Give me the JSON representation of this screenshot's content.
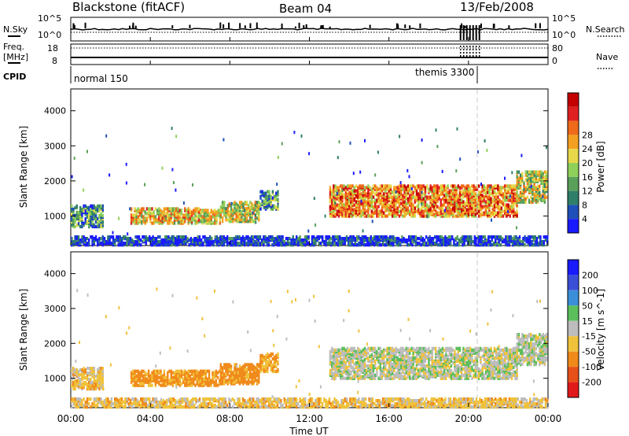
{
  "header": {
    "station": "Blackstone (fitACF)",
    "beam": "Beam 04",
    "date": "13/Feb/2008"
  },
  "strip_labels": {
    "nsky": "N.Sky",
    "nsearch": "N.Search",
    "freq_line1": "Freq.",
    "freq_line2": "[MHz]",
    "nave": "Nave",
    "cpid": "CPID"
  },
  "cpid_modes": [
    {
      "label": "normal 150",
      "start_hour": 0.0
    },
    {
      "label": "themis 3300",
      "start_hour": 19.6
    }
  ],
  "colors": {
    "power": [
      "#1a1aff",
      "#1f4fb8",
      "#2f7f6a",
      "#5aa05a",
      "#8fd05a",
      "#e6d84a",
      "#f3a020",
      "#ef6a1a",
      "#e02020",
      "#c40000"
    ],
    "velocity": [
      "#1a1aff",
      "#3a4fd8",
      "#3a8fd8",
      "#5bbf5b",
      "#bdbdbd",
      "#f0c23a",
      "#f08a1a",
      "#e8501a",
      "#e01a1a"
    ]
  },
  "chart_data": [
    {
      "type": "line",
      "title": "N.Sky / N.Search",
      "y_ticks_left": [
        "10^5",
        "10^0"
      ],
      "y_ticks_right": [
        "10^5",
        "10^0"
      ],
      "xlim": [
        0,
        24
      ]
    },
    {
      "type": "line",
      "title": "Freq. / Nave",
      "y_ticks_left": [
        "18",
        "8"
      ],
      "y_ticks_right": [
        "80",
        "0"
      ],
      "xlim": [
        0,
        24
      ],
      "frequency_mhz": 10,
      "nave": 10
    },
    {
      "type": "heatmap",
      "panel": "power",
      "xlabel": "",
      "ylabel": "Slant Range [km]",
      "colorbar_label": "Power [dB]",
      "colorbar_ticks": [
        "4",
        "8",
        "12",
        "16",
        "20",
        "24",
        "28"
      ],
      "xlim": [
        0,
        24
      ],
      "ylim": [
        180,
        4600
      ],
      "y_ticks": [
        "1000",
        "2000",
        "3000",
        "4000"
      ],
      "bands": [
        {
          "t0": 0.0,
          "t1": 1.6,
          "r0": 700,
          "r1": 1300,
          "level": 0.3
        },
        {
          "t0": 3.0,
          "t1": 6.5,
          "r0": 800,
          "r1": 1250,
          "level": 0.6
        },
        {
          "t0": 6.5,
          "t1": 7.5,
          "r0": 800,
          "r1": 1200,
          "level": 0.55
        },
        {
          "t0": 7.5,
          "t1": 9.5,
          "r0": 850,
          "r1": 1400,
          "level": 0.5
        },
        {
          "t0": 9.5,
          "t1": 10.4,
          "r0": 1200,
          "r1": 1700,
          "level": 0.3
        },
        {
          "t0": 13.0,
          "t1": 22.4,
          "r0": 1000,
          "r1": 1900,
          "level": 0.7
        },
        {
          "t0": 22.4,
          "t1": 23.9,
          "r0": 1400,
          "r1": 2300,
          "level": 0.5
        },
        {
          "t0": 0.0,
          "t1": 24.0,
          "r0": 180,
          "r1": 420,
          "level": 0.1
        }
      ]
    },
    {
      "type": "heatmap",
      "panel": "velocity",
      "xlabel": "Time UT",
      "ylabel": "Slant Range [km]",
      "colorbar_label": "Velocity [m s^-1]",
      "colorbar_ticks": [
        "200",
        "100",
        "50",
        "15",
        "-15",
        "-50",
        "-100",
        "-200"
      ],
      "xlim": [
        0,
        24
      ],
      "ylim": [
        180,
        4600
      ],
      "y_ticks": [
        "1000",
        "2000",
        "3000",
        "4000"
      ],
      "x_ticks": [
        "00:00",
        "04:00",
        "08:00",
        "12:00",
        "16:00",
        "20:00",
        "00:00"
      ],
      "bands": [
        {
          "t0": 0.0,
          "t1": 1.6,
          "r0": 700,
          "r1": 1300,
          "velocity": -30
        },
        {
          "t0": 3.0,
          "t1": 7.5,
          "r0": 800,
          "r1": 1250,
          "velocity": -60
        },
        {
          "t0": 7.5,
          "t1": 9.5,
          "r0": 850,
          "r1": 1400,
          "velocity": -70
        },
        {
          "t0": 9.5,
          "t1": 10.4,
          "r0": 1200,
          "r1": 1700,
          "velocity": -50
        },
        {
          "t0": 13.0,
          "t1": 22.4,
          "r0": 1000,
          "r1": 1900,
          "velocity": 0
        },
        {
          "t0": 22.4,
          "t1": 23.9,
          "r0": 1400,
          "r1": 2300,
          "velocity": 0
        },
        {
          "t0": 0.0,
          "t1": 24.0,
          "r0": 180,
          "r1": 420,
          "velocity": -30
        }
      ]
    }
  ]
}
